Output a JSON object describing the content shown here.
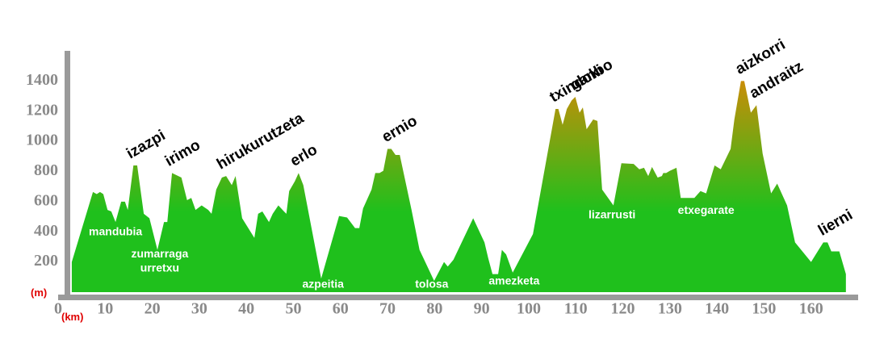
{
  "chart_data": {
    "type": "area",
    "x_unit": "(km)",
    "y_unit": "(m)",
    "xlim": [
      0,
      170
    ],
    "ylim": [
      0,
      1600
    ],
    "xticks": [
      0,
      10,
      20,
      30,
      40,
      50,
      60,
      70,
      80,
      90,
      100,
      110,
      120,
      130,
      140,
      150,
      160
    ],
    "yticks": [
      200,
      400,
      600,
      800,
      1000,
      1200,
      1400
    ],
    "color_low": "#1fc01c",
    "color_high": "#c98d08",
    "x": [
      2.9,
      7.4,
      8.2,
      8.9,
      9.6,
      10.5,
      11.3,
      12.2,
      13.4,
      14.2,
      14.8,
      16.0,
      16.8,
      18.2,
      19.4,
      21.1,
      22.5,
      23.2,
      24.2,
      26.2,
      27.4,
      28.3,
      29.2,
      30.5,
      31.9,
      32.6,
      33.6,
      34.8,
      35.7,
      36.9,
      37.7,
      39.1,
      41.7,
      42.5,
      43.4,
      44.8,
      45.6,
      46.8,
      48.0,
      48.5,
      49.1,
      50.3,
      51.1,
      52.1,
      55.9,
      59.7,
      61.4,
      63.1,
      64.0,
      64.8,
      66.6,
      67.4,
      68.3,
      69.1,
      70.0,
      70.8,
      71.7,
      72.6,
      75.1,
      76.8,
      79.9,
      82.0,
      82.8,
      84.0,
      88.2,
      90.6,
      91.4,
      92.3,
      93.5,
      94.3,
      95.2,
      96.6,
      100.9,
      105.7,
      106.3,
      107.2,
      108.1,
      109.1,
      109.9,
      110.8,
      111.5,
      112.3,
      113.7,
      114.6,
      115.6,
      118.0,
      119.7,
      122.3,
      123.5,
      124.5,
      125.4,
      126.2,
      127.4,
      128.3,
      128.6,
      129.2,
      130.0,
      131.4,
      132.3,
      135.2,
      136.5,
      137.7,
      139.5,
      140.8,
      142.9,
      143.7,
      145.1,
      145.8,
      147.2,
      148.4,
      149.7,
      151.5,
      152.8,
      154.9,
      156.6,
      160.0,
      162.6,
      163.5,
      164.3,
      166.0,
      167.4
    ],
    "values": [
      200,
      664,
      650,
      664,
      650,
      545,
      535,
      465,
      600,
      600,
      545,
      840,
      840,
      520,
      490,
      280,
      465,
      465,
      790,
      760,
      610,
      625,
      545,
      575,
      545,
      520,
      680,
      760,
      770,
      710,
      770,
      490,
      360,
      520,
      535,
      465,
      520,
      575,
      535,
      520,
      670,
      735,
      790,
      710,
      90,
      505,
      495,
      425,
      425,
      555,
      680,
      790,
      790,
      805,
      950,
      950,
      910,
      910,
      545,
      280,
      75,
      200,
      170,
      215,
      490,
      330,
      225,
      120,
      120,
      280,
      250,
      130,
      385,
      1215,
      1215,
      1110,
      1215,
      1270,
      1295,
      1190,
      1225,
      1080,
      1145,
      1135,
      680,
      575,
      855,
      850,
      815,
      825,
      770,
      830,
      760,
      770,
      790,
      790,
      805,
      825,
      625,
      625,
      670,
      655,
      840,
      815,
      950,
      1145,
      1400,
      1400,
      1190,
      1240,
      920,
      655,
      720,
      575,
      330,
      200,
      330,
      330,
      270,
      270,
      120
    ],
    "peaks": [
      {
        "text": "izazpi",
        "x": 16.0,
        "y": 840
      },
      {
        "text": "irimo",
        "x": 24.2,
        "y": 790
      },
      {
        "text": "hirukurutzeta",
        "x": 35.2,
        "y": 770
      },
      {
        "text": "erlo",
        "x": 50.8,
        "y": 790
      },
      {
        "text": "ernio",
        "x": 70.3,
        "y": 950
      },
      {
        "text": "txindoki",
        "x": 105.9,
        "y": 1215
      },
      {
        "text": "ganbo",
        "x": 110.3,
        "y": 1295
      },
      {
        "text": "aizkorri",
        "x": 145.4,
        "y": 1400
      },
      {
        "text": "andraitz",
        "x": 148.4,
        "y": 1240
      },
      {
        "text": "lierni",
        "x": 163.0,
        "y": 330
      }
    ],
    "places": [
      {
        "text": "mandubia",
        "x": 12.2,
        "y": 396
      },
      {
        "text": "zumarraga",
        "x": 21.6,
        "y": 250
      },
      {
        "text": "urretxu",
        "x": 21.6,
        "y": 155
      },
      {
        "text": "azpeitia",
        "x": 56.3,
        "y": 48
      },
      {
        "text": "tolosa",
        "x": 79.4,
        "y": 48
      },
      {
        "text": "amezketa",
        "x": 96.9,
        "y": 70
      },
      {
        "text": "lizarrusti",
        "x": 117.7,
        "y": 510
      },
      {
        "text": "etxegarate",
        "x": 137.7,
        "y": 540
      }
    ]
  }
}
